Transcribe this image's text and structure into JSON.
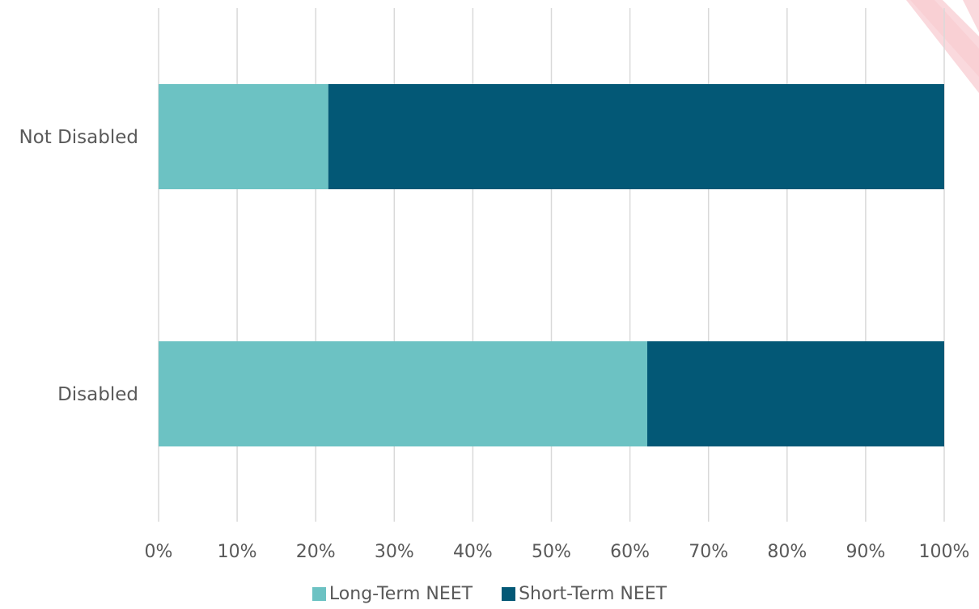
{
  "chart_data": {
    "type": "bar",
    "orientation": "horizontal",
    "stacked": true,
    "categories": [
      "Not Disabled",
      "Disabled"
    ],
    "series": [
      {
        "name": "Long-Term NEET",
        "color": "#6cc2c3",
        "values": [
          21.6,
          62.2
        ]
      },
      {
        "name": "Short-Term NEET",
        "color": "#035876",
        "values": [
          78.4,
          37.8
        ]
      }
    ],
    "xlim": [
      0,
      100
    ],
    "x_ticks": [
      "0%",
      "10%",
      "20%",
      "30%",
      "40%",
      "50%",
      "60%",
      "70%",
      "80%",
      "90%",
      "100%"
    ],
    "grid": "vertical",
    "legend_position": "bottom"
  },
  "watermark_color": "#f8c9cf"
}
